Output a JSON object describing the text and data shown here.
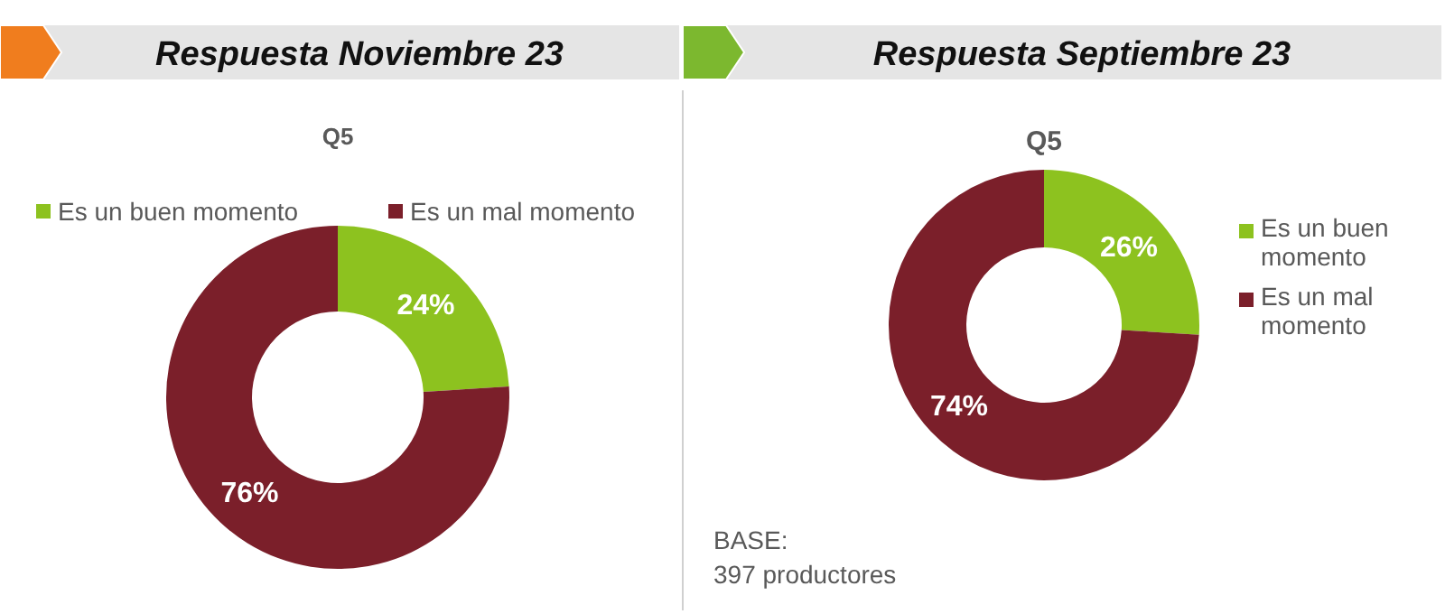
{
  "chart_data": [
    {
      "type": "donut",
      "title": "Respuesta Noviembre 23",
      "subtitle": "Q5",
      "categories": [
        "Es un buen momento",
        "Es un mal momento"
      ],
      "values": [
        24,
        76
      ],
      "value_labels": [
        "24%",
        "76%"
      ],
      "colors": [
        "#8dc21f",
        "#7b1f2a"
      ],
      "legend": "top"
    },
    {
      "type": "donut",
      "title": "Respuesta Septiembre 23",
      "subtitle": "Q5",
      "categories": [
        "Es un buen momento",
        "Es un mal momento"
      ],
      "values": [
        26,
        74
      ],
      "value_labels": [
        "26%",
        "74%"
      ],
      "colors": [
        "#8dc21f",
        "#7b1f2a"
      ],
      "legend": "right",
      "annotations": [
        "BASE:\n397 productores"
      ]
    }
  ]
}
